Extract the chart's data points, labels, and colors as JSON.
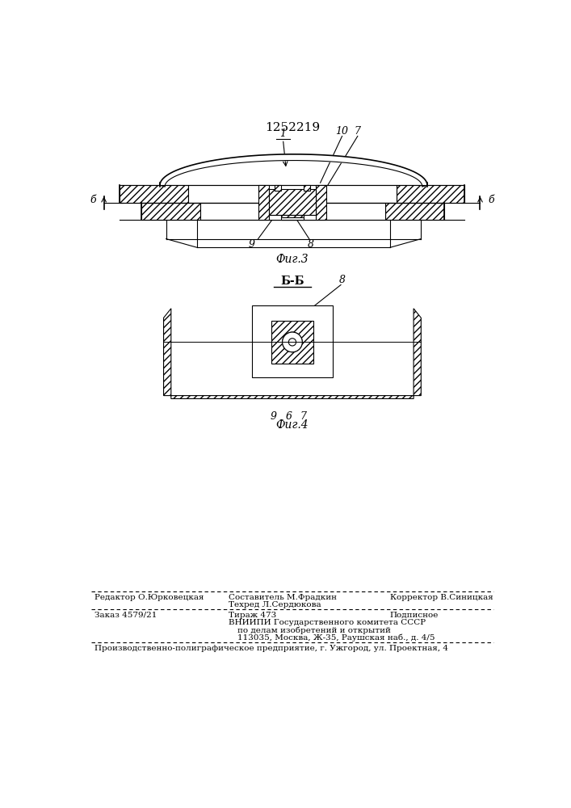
{
  "patent_number": "1252219",
  "fig3_label": "Фиг.3",
  "fig4_label": "Фиг.4",
  "bb_label": "Б-Б",
  "background": "#ffffff",
  "line_color": "#000000",
  "footer_bottom": "Производственно-полиграфическое предприятие, г. Ужгород, ул. Проектная, 4"
}
